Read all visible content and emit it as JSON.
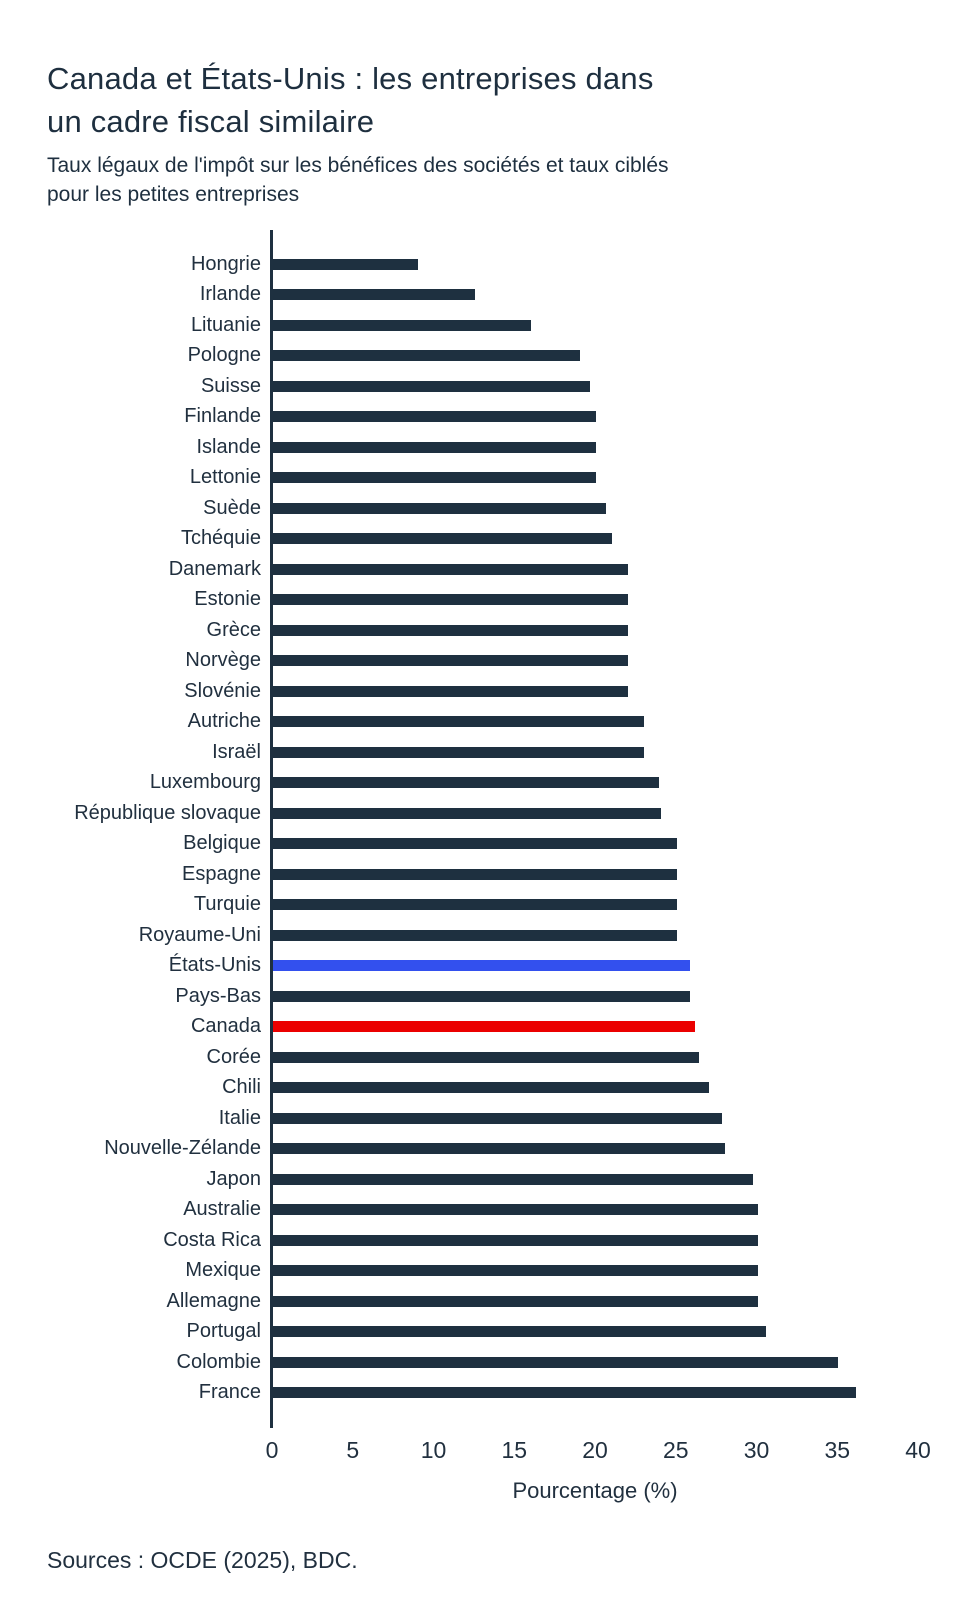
{
  "header": {
    "title_lines": [
      "Canada et États-Unis : les entreprises dans",
      "un cadre fiscal similaire"
    ],
    "subtitle_lines": [
      "Taux légaux de l'impôt sur les bénéfices des sociétés et taux ciblés",
      "pour les petites entreprises"
    ]
  },
  "chart_data": {
    "type": "bar",
    "orientation": "horizontal",
    "sort": "ascending",
    "grid": false,
    "categories": [
      "Hongrie",
      "Irlande",
      "Lituanie",
      "Pologne",
      "Suisse",
      "Finlande",
      "Islande",
      "Lettonie",
      "Suède",
      "Tchéquie",
      "Danemark",
      "Estonie",
      "Grèce",
      "Norvège",
      "Slovénie",
      "Autriche",
      "Israël",
      "Luxembourg",
      "République slovaque",
      "Belgique",
      "Espagne",
      "Turquie",
      "Royaume-Uni",
      "États-Unis",
      "Pays-Bas",
      "Canada",
      "Corée",
      "Chili",
      "Italie",
      "Nouvelle-Zélande",
      "Japon",
      "Australie",
      "Costa Rica",
      "Mexique",
      "Allemagne",
      "Portugal",
      "Colombie",
      "France"
    ],
    "values": [
      9,
      12.5,
      16,
      19,
      19.6,
      20,
      20,
      20,
      20.6,
      21,
      22,
      22,
      22,
      22,
      22,
      23,
      23,
      23.9,
      24,
      25,
      25,
      25,
      25,
      25.8,
      25.8,
      26.1,
      26.4,
      27,
      27.8,
      28,
      29.7,
      30,
      30,
      30,
      30,
      30.5,
      35,
      36.1
    ],
    "bar_color": "#1e3040",
    "highlighted_bars": {
      "États-Unis": "#3350ee",
      "Canada": "#eb0000"
    },
    "xlabel": "Pourcentage (%)",
    "x_ticks": [
      0,
      5,
      10,
      15,
      20,
      25,
      30,
      35,
      40
    ],
    "xlim": [
      0,
      40
    ]
  },
  "footer": {
    "sources": "Sources : OCDE (2025), BDC."
  },
  "colors": {
    "text": "#21303f",
    "axis": "#1e3040",
    "background": "#ffffff"
  }
}
